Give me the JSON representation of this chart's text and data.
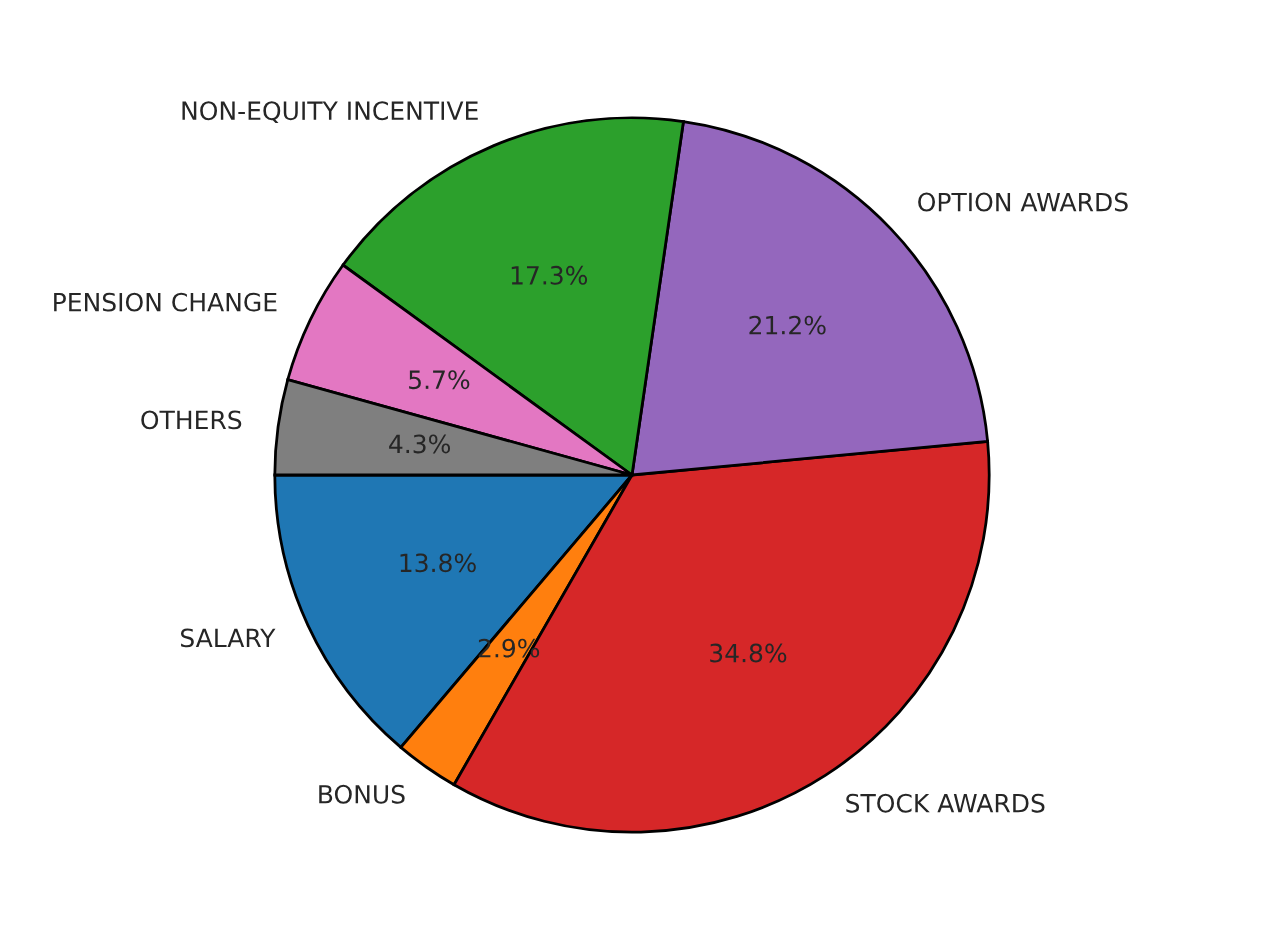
{
  "chart_data": {
    "type": "pie",
    "categories": [
      "SALARY",
      "BONUS",
      "STOCK AWARDS",
      "OPTION AWARDS",
      "NON-EQUITY INCENTIVE",
      "PENSION CHANGE",
      "OTHERS"
    ],
    "values": [
      13.8,
      2.9,
      34.8,
      21.2,
      17.3,
      5.7,
      4.3
    ],
    "value_labels": [
      "13.8%",
      "2.9%",
      "34.8%",
      "21.2%",
      "17.3%",
      "5.7%",
      "4.3%"
    ],
    "colors": [
      "#1f77b4",
      "#ff7f0e",
      "#d62728",
      "#9467bd",
      "#2ca02c",
      "#e377c2",
      "#7f7f7f"
    ]
  }
}
